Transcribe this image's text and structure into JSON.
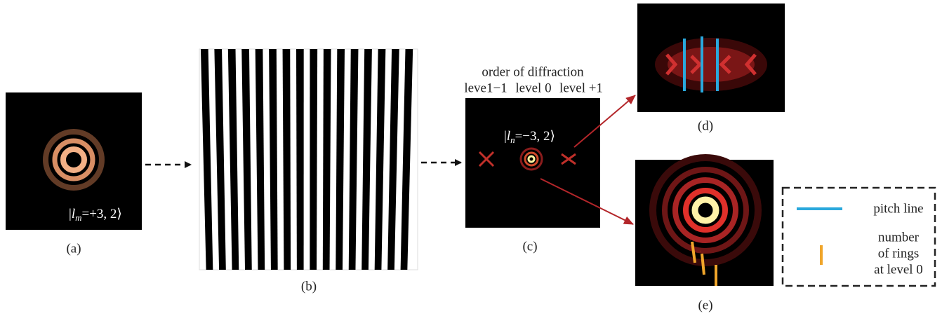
{
  "panels": [
    {
      "label": "(a)",
      "state": {
        "open": "|",
        "symbol": "l",
        "sub": "m",
        "rest": "=+3, 2⟩"
      }
    },
    {
      "label": "(b)"
    },
    {
      "label": "(c)",
      "state": {
        "open": "|",
        "symbol": "l",
        "sub": "n",
        "rest": "=−3, 2⟩"
      },
      "title": "order of diffraction",
      "orders": [
        "leve1−1",
        "level 0",
        "level +1"
      ]
    },
    {
      "label": "(d)"
    },
    {
      "label": "(e)"
    }
  ],
  "legend": {
    "items": [
      {
        "lines": [
          "pitch line"
        ]
      },
      {
        "lines": [
          "number",
          "of rings",
          "at level 0"
        ]
      }
    ]
  }
}
